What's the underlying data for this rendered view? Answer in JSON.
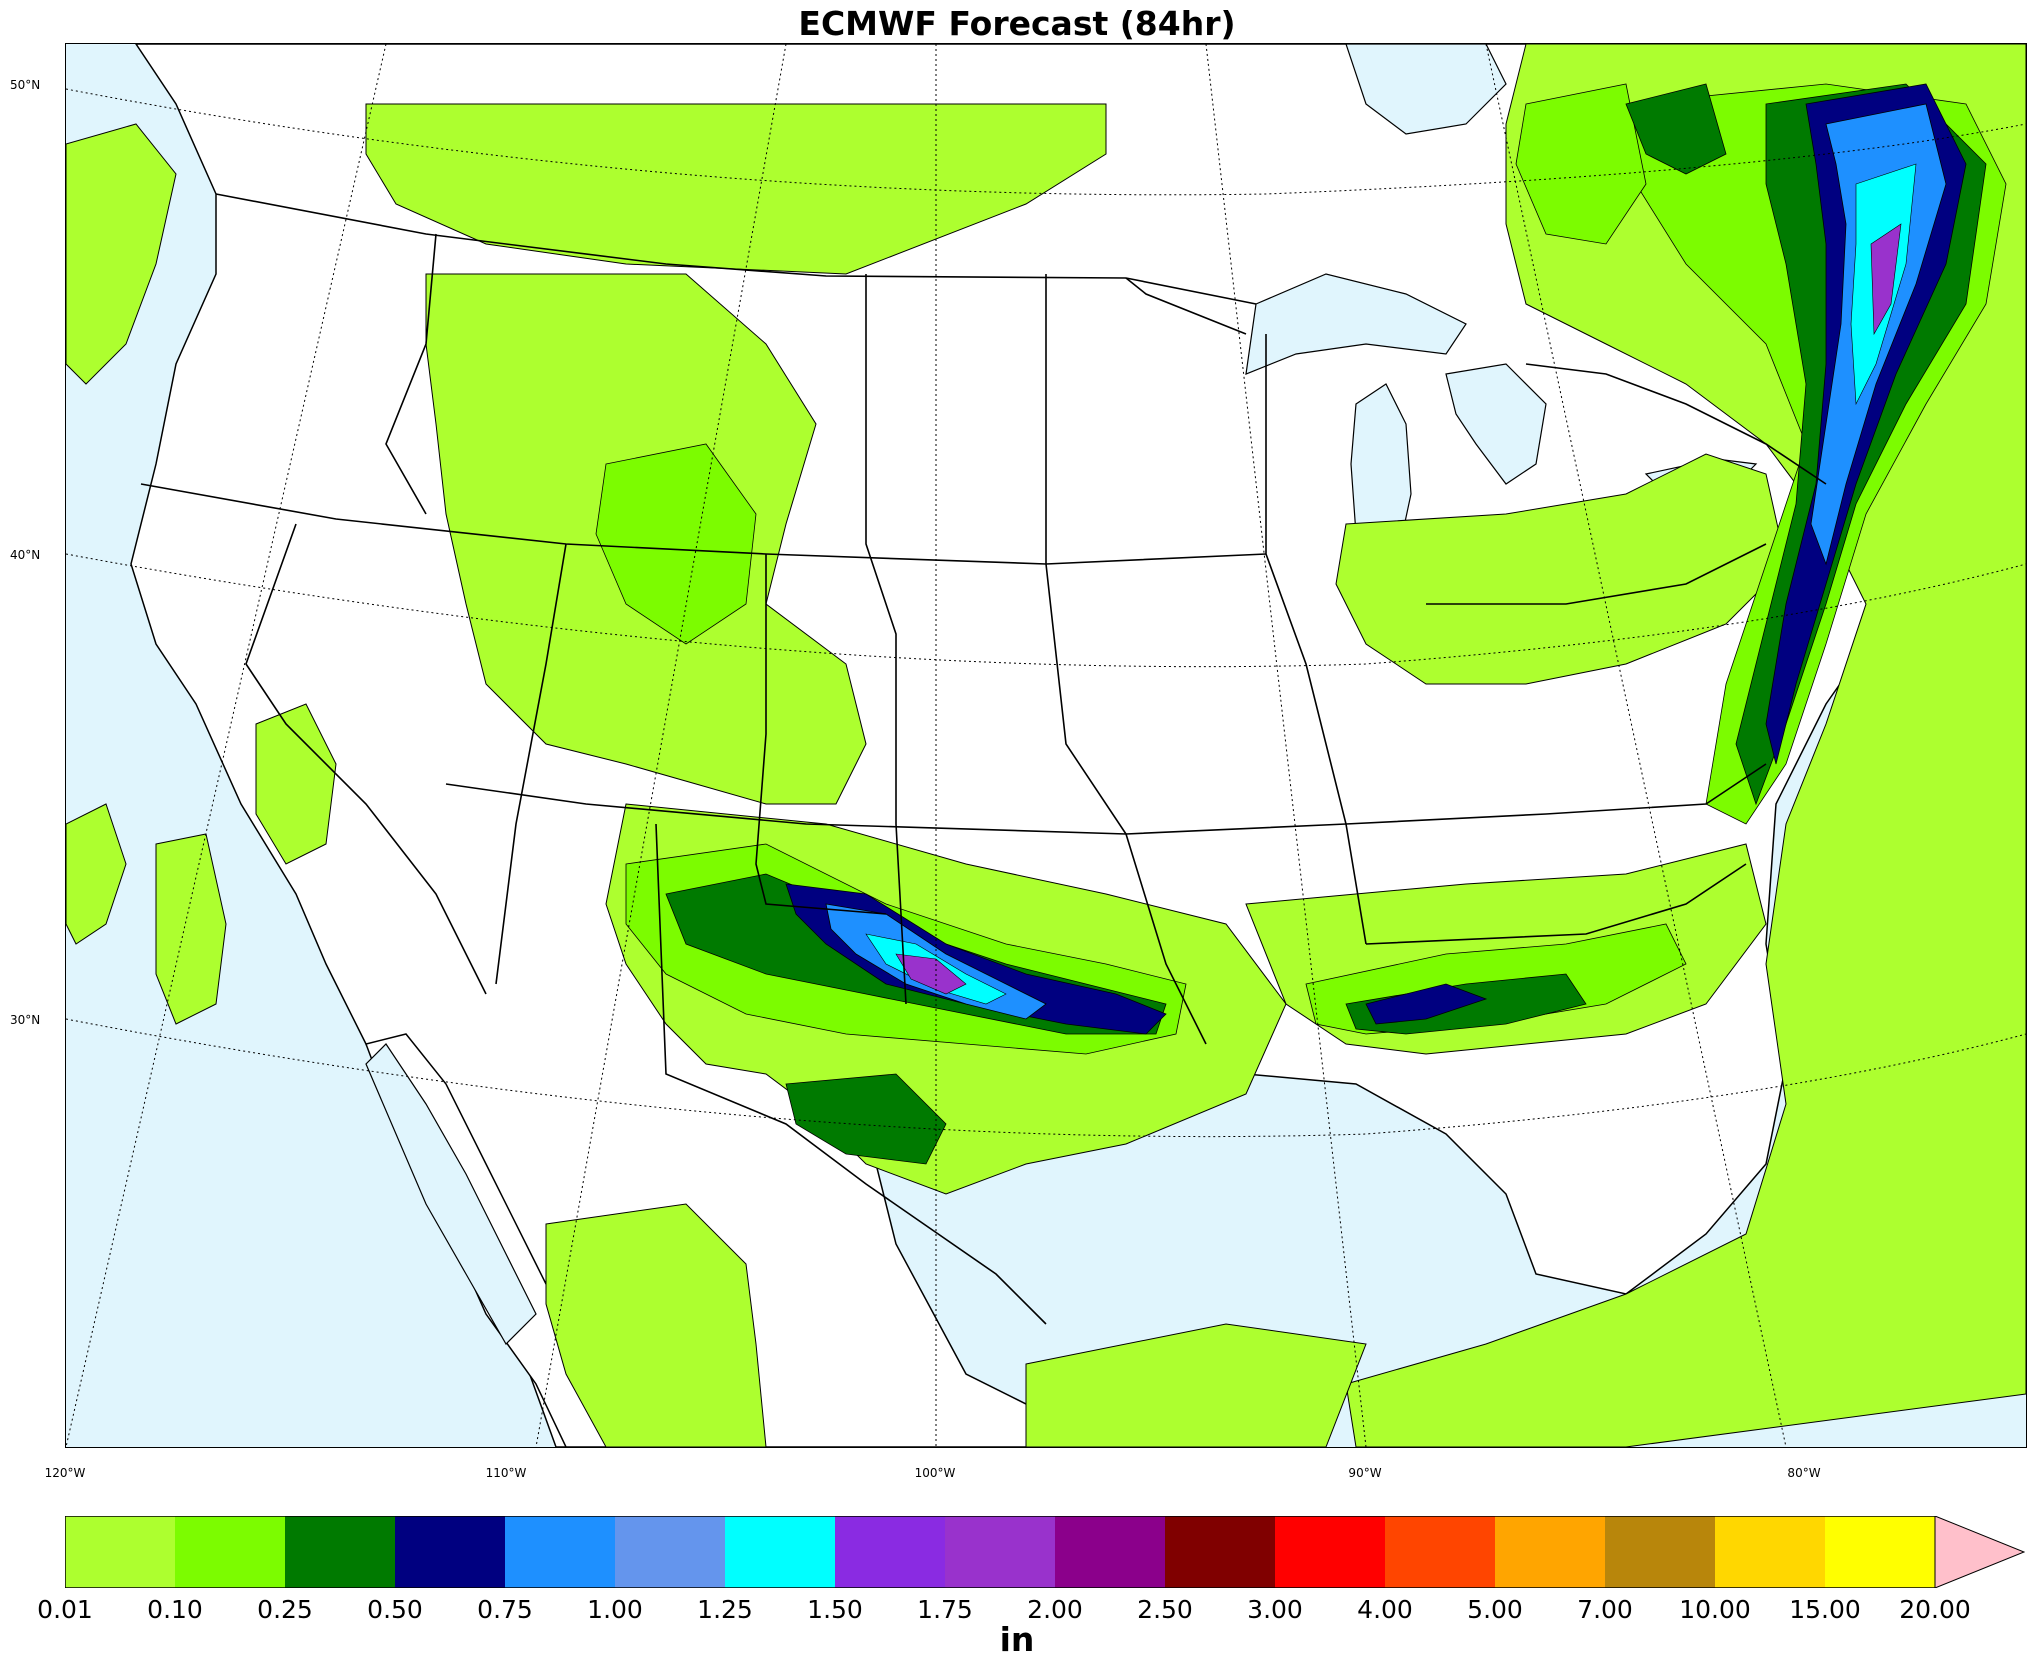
{
  "title": "ECMWF Forecast (84hr)",
  "lat_labels": [
    "50°N",
    "40°N",
    "30°N"
  ],
  "lon_labels": [
    "120°W",
    "110°W",
    "100°W",
    "90°W",
    "80°W"
  ],
  "colorbar": {
    "unit": "in",
    "ticks": [
      "0.01",
      "0.10",
      "0.25",
      "0.50",
      "0.75",
      "1.00",
      "1.25",
      "1.50",
      "1.75",
      "2.00",
      "2.50",
      "3.00",
      "4.00",
      "5.00",
      "7.00",
      "10.00",
      "15.00",
      "20.00"
    ],
    "colors": [
      "#adff2f",
      "#7cfc00",
      "#007a00",
      "#000080",
      "#1e90ff",
      "#6495ed",
      "#00ffff",
      "#8a2be2",
      "#9932cc",
      "#8b008b",
      "#800000",
      "#ff0000",
      "#ff4500",
      "#ffa500",
      "#b8860b",
      "#ffd700",
      "#ffff00"
    ],
    "extend_color": "#ffc0cb"
  },
  "colors": {
    "ocean": "#e0f5fd",
    "land": "#ffffff"
  }
}
